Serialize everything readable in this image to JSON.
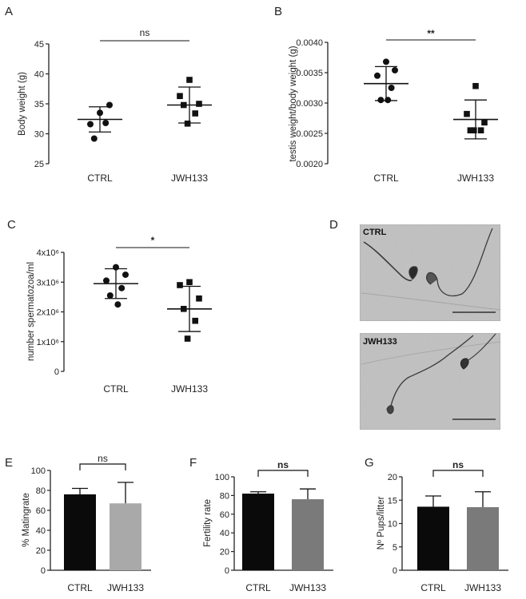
{
  "panels": {
    "A": {
      "letter": "A",
      "chart_data": {
        "type": "scatter",
        "ylabel": "Body weight (g)",
        "categories": [
          "CTRL",
          "JWH133"
        ],
        "ylim": [
          25,
          45
        ],
        "yticks": [
          25,
          30,
          35,
          40,
          45
        ],
        "yticklabels": [
          "25",
          "30",
          "35",
          "40",
          "45"
        ],
        "points": [
          [
            33.5,
            34.8,
            31.6,
            31.8,
            29.2
          ],
          [
            39.0,
            36.3,
            35.0,
            34.8,
            33.4,
            31.7
          ]
        ],
        "markers": [
          "circle",
          "square"
        ],
        "mean": [
          32.4,
          34.8
        ],
        "sd": [
          2.1,
          3.0
        ],
        "significance": "ns"
      }
    },
    "B": {
      "letter": "B",
      "chart_data": {
        "type": "scatter",
        "ylabel": "testis weight/body weight (g)",
        "categories": [
          "CTRL",
          "JWH133"
        ],
        "ylim": [
          0.002,
          0.004
        ],
        "yticks": [
          0.002,
          0.0025,
          0.003,
          0.0035,
          0.004
        ],
        "yticklabels": [
          "0.0020",
          "0.0025",
          "0.0030",
          "0.0035",
          "0.0040"
        ],
        "points": [
          [
            0.00368,
            0.00354,
            0.00345,
            0.00325,
            0.00305,
            0.00305
          ],
          [
            0.00328,
            0.00282,
            0.00268,
            0.00255,
            0.00255,
            0.00255
          ]
        ],
        "markers": [
          "circle",
          "square"
        ],
        "mean": [
          0.00332,
          0.00273
        ],
        "sd": [
          0.00028,
          0.00032
        ],
        "significance": "**"
      }
    },
    "C": {
      "letter": "C",
      "chart_data": {
        "type": "scatter",
        "ylabel": "number spermatozoa/ml",
        "categories": [
          "CTRL",
          "JWH133"
        ],
        "ylim": [
          0,
          4000000
        ],
        "yticks": [
          0,
          1000000,
          2000000,
          3000000,
          4000000
        ],
        "yticklabels": [
          "0",
          "1x10⁶",
          "2x10⁶",
          "3x10⁶",
          "4x10⁶"
        ],
        "points": [
          [
            3500000,
            3250000,
            3050000,
            2800000,
            2550000,
            2250000
          ],
          [
            3000000,
            2900000,
            2450000,
            2100000,
            1700000,
            1100000
          ]
        ],
        "markers": [
          "circle",
          "square"
        ],
        "mean": [
          2950000,
          2100000
        ],
        "sd": [
          500000,
          760000
        ],
        "significance": "*"
      }
    },
    "D": {
      "letter": "D",
      "images": [
        {
          "label": "CTRL"
        },
        {
          "label": "JWH133"
        }
      ]
    },
    "E": {
      "letter": "E",
      "chart_data": {
        "type": "bar",
        "ylabel": "% Matingrate",
        "categories": [
          "CTRL",
          "JWH133"
        ],
        "ylim": [
          0,
          100
        ],
        "yticks": [
          0,
          20,
          40,
          60,
          80,
          100
        ],
        "yticklabels": [
          "0",
          "20",
          "40",
          "60",
          "80",
          "100"
        ],
        "values": [
          76,
          67
        ],
        "errors": [
          6,
          21
        ],
        "bar_colors": [
          "#0a0a0a",
          "#a9a9a9"
        ],
        "significance": "ns"
      }
    },
    "F": {
      "letter": "F",
      "chart_data": {
        "type": "bar",
        "ylabel": "Fertility rate",
        "categories": [
          "CTRL",
          "JWH133"
        ],
        "ylim": [
          0,
          100
        ],
        "yticks": [
          0,
          20,
          40,
          60,
          80,
          100
        ],
        "yticklabels": [
          "0",
          "20",
          "40",
          "60",
          "80",
          "100"
        ],
        "values": [
          82,
          76
        ],
        "errors": [
          2,
          11
        ],
        "bar_colors": [
          "#0a0a0a",
          "#7a7a7a"
        ],
        "significance": "ns"
      }
    },
    "G": {
      "letter": "G",
      "chart_data": {
        "type": "bar",
        "ylabel": "Nº Pups/litter",
        "categories": [
          "CTRL",
          "JWH133"
        ],
        "ylim": [
          0,
          20
        ],
        "yticks": [
          0,
          5,
          10,
          15,
          20
        ],
        "yticklabels": [
          "0",
          "5",
          "10",
          "15",
          "20"
        ],
        "values": [
          13.6,
          13.5
        ],
        "errors": [
          2.3,
          3.3
        ],
        "bar_colors": [
          "#0a0a0a",
          "#7a7a7a"
        ],
        "significance": "ns"
      }
    }
  }
}
